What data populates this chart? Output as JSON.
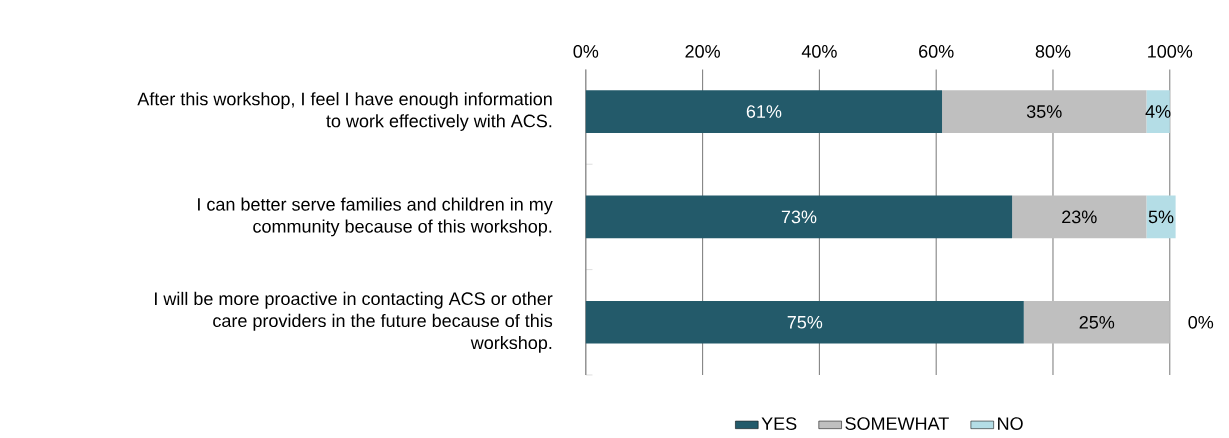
{
  "chart_data": {
    "type": "bar",
    "orientation": "horizontal",
    "stacked": true,
    "categories": [
      "After this workshop, I feel I have enough information to work effectively with ACS.",
      "I can better serve families and children in my community because of this workshop.",
      "I will be more proactive in contacting ACS or other care providers in the future because of this workshop."
    ],
    "series": [
      {
        "name": "YES",
        "color": "#235a6a",
        "values": [
          61,
          73,
          75
        ],
        "value_labels": [
          "61%",
          "73%",
          "75%"
        ]
      },
      {
        "name": "SOMEWHAT",
        "color": "#bfbfbf",
        "values": [
          35,
          23,
          25
        ],
        "value_labels": [
          "35%",
          "23%",
          "25%"
        ]
      },
      {
        "name": "NO",
        "color": "#b4dde6",
        "values": [
          4,
          5,
          0
        ],
        "value_labels": [
          "4%",
          "5%",
          "0%"
        ]
      }
    ],
    "xlim": [
      0,
      101
    ],
    "xticks": [
      {
        "value": 0,
        "label": "0%"
      },
      {
        "value": 20,
        "label": "20%"
      },
      {
        "value": 40,
        "label": "40%"
      },
      {
        "value": 60,
        "label": "60%"
      },
      {
        "value": 80,
        "label": "80%"
      },
      {
        "value": 100,
        "label": "100%"
      }
    ],
    "grid": "x",
    "legend": "bottom"
  }
}
